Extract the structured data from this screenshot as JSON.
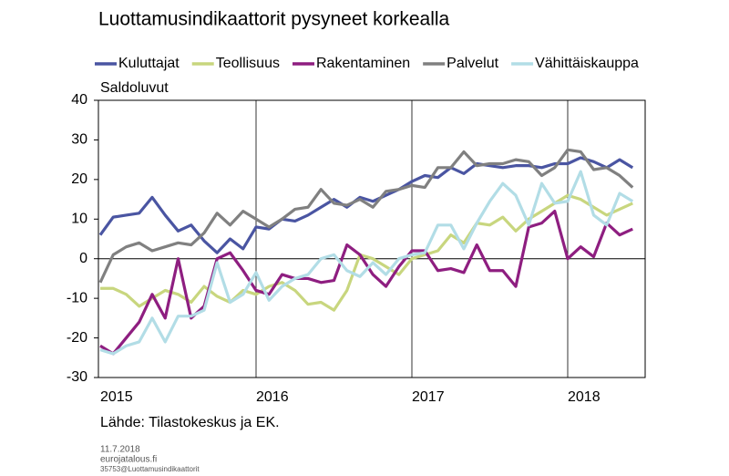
{
  "chart_data": {
    "type": "line",
    "title": "Luottamusindikaattorit pysyneet korkealla",
    "y_label": "Saldoluvut",
    "source": "Lähde: Tilastokeskus ja EK.",
    "footer": [
      "11.7.2018",
      "eurojatalous.fi",
      "35753@Luottamusindikaattorit"
    ],
    "categories": [
      "2015",
      null,
      null,
      null,
      null,
      null,
      null,
      null,
      null,
      null,
      null,
      null,
      "2016",
      null,
      null,
      null,
      null,
      null,
      null,
      null,
      null,
      null,
      null,
      null,
      "2017",
      null,
      null,
      null,
      null,
      null,
      null,
      null,
      null,
      null,
      null,
      null,
      "2018",
      null,
      null,
      null,
      null,
      null
    ],
    "ylim": [
      -30,
      40
    ],
    "yticks": [
      -30,
      -20,
      -10,
      0,
      10,
      20,
      30,
      40
    ],
    "legend": "top",
    "series": [
      {
        "name": "Kuluttajat",
        "color": "#4a55a2",
        "values": [
          6,
          10.5,
          11,
          11.5,
          15.5,
          11,
          7,
          8.5,
          4.5,
          1.5,
          5,
          2.5,
          8,
          7.5,
          10,
          9.5,
          11,
          13,
          15,
          13,
          15.5,
          14.5,
          16,
          17.5,
          19.5,
          21,
          20.5,
          23,
          21.5,
          24,
          23.5,
          23,
          23.5,
          23.5,
          23,
          24,
          24,
          25.5,
          24.5,
          23,
          25,
          23
        ]
      },
      {
        "name": "Teollisuus",
        "color": "#c8d67e",
        "values": [
          -7.5,
          -7.5,
          -9,
          -12,
          -10,
          -8,
          -9,
          -11,
          -7,
          -9.5,
          -11,
          -8,
          -9,
          -7,
          -6,
          -8,
          -11.5,
          -11,
          -13,
          -8,
          1,
          0,
          -2,
          -4,
          0,
          1,
          2,
          6,
          4,
          9,
          8.5,
          10.5,
          7,
          10,
          12,
          14,
          16,
          15,
          13,
          11,
          12.5,
          14
        ]
      },
      {
        "name": "Rakentaminen",
        "color": "#8e1e80",
        "values": [
          -22,
          -24,
          -20,
          -16,
          -9,
          -15,
          0,
          -15,
          -12,
          0,
          1.5,
          -3,
          -8,
          -9,
          -4,
          -5,
          -5,
          -6,
          -5.5,
          3.5,
          1,
          -4,
          -7,
          -2,
          2,
          2,
          -3,
          -2.5,
          -3.5,
          3.5,
          -3,
          -3,
          -7,
          8,
          9,
          12,
          0,
          3,
          0.5,
          9,
          6,
          7.5
        ]
      },
      {
        "name": "Palvelut",
        "color": "#808080",
        "values": [
          -6,
          1,
          3,
          4,
          2,
          3,
          4,
          3.5,
          6.5,
          11.5,
          8.5,
          12,
          10,
          8,
          10,
          12.5,
          13,
          17.5,
          14,
          13.5,
          15,
          13,
          17,
          17.5,
          18.5,
          18,
          23,
          23,
          27,
          23.5,
          24,
          24,
          25,
          24.5,
          21,
          23,
          27.5,
          27,
          22.5,
          23,
          21,
          18
        ]
      },
      {
        "name": "Vähittäiskauppa",
        "color": "#b2dde6",
        "values": [
          -23,
          -24,
          -22,
          -21,
          -15,
          -21,
          -14.5,
          -14.5,
          -13,
          -1,
          -11,
          -9,
          -3.5,
          -10.5,
          -7,
          -5,
          -4,
          0,
          1,
          -3,
          -4.5,
          -1,
          -4,
          0,
          1,
          1.5,
          8.5,
          8.5,
          2.5,
          9,
          14.5,
          19,
          16,
          8.5,
          19,
          14,
          14.5,
          22,
          11,
          8.5,
          16.5,
          14.5
        ]
      }
    ]
  }
}
